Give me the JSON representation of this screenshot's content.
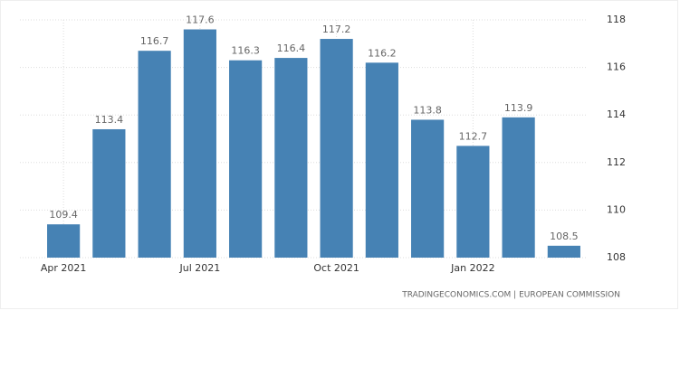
{
  "chart_data": {
    "type": "bar",
    "categories": [
      "Apr 2021",
      null,
      null,
      "Jul 2021",
      null,
      null,
      "Oct 2021",
      null,
      null,
      "Jan 2022",
      null,
      null
    ],
    "values": [
      109.4,
      113.4,
      116.7,
      117.6,
      116.3,
      116.4,
      117.2,
      116.2,
      113.8,
      112.7,
      113.9,
      108.5
    ],
    "color": "#4682b4",
    "ylim": [
      108,
      118
    ],
    "yticks": [
      108,
      110,
      112,
      114,
      116,
      118
    ],
    "grid": true,
    "source": "TRADINGECONOMICS.COM | EUROPEAN COMMISSION"
  }
}
